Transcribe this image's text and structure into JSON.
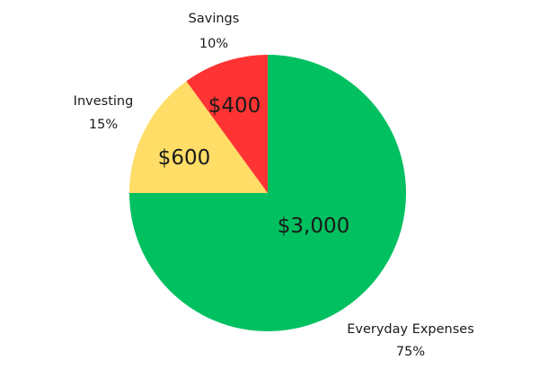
{
  "chart_data": {
    "type": "pie",
    "slices": [
      {
        "label": "Everyday Expenses",
        "value": 3000,
        "value_label": "$3,000",
        "percent": 75,
        "percent_label": "75%",
        "color": "#00c060"
      },
      {
        "label": "Investing",
        "value": 600,
        "value_label": "$600",
        "percent": 15,
        "percent_label": "15%",
        "color": "#ffdd66"
      },
      {
        "label": "Savings",
        "value": 400,
        "value_label": "$400",
        "percent": 10,
        "percent_label": "10%",
        "color": "#ff3333"
      }
    ],
    "start_angle_deg": 0,
    "direction": "clockwise",
    "legend": "none"
  }
}
